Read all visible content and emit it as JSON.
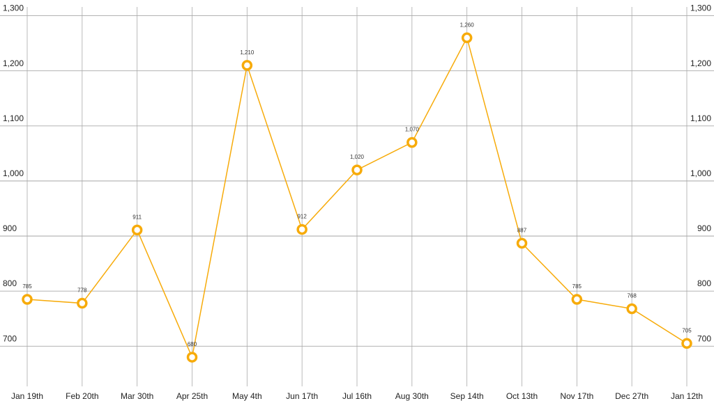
{
  "chart_data": {
    "type": "line",
    "categories": [
      "Jan 19th",
      "Feb 20th",
      "Mar 30th",
      "Apr 25th",
      "May 4th",
      "Jun 17th",
      "Jul 16th",
      "Aug 30th",
      "Sep 14th",
      "Oct 13th",
      "Nov 17th",
      "Dec 27th",
      "Jan 12th"
    ],
    "values": [
      785,
      778,
      911,
      680,
      1210,
      912,
      1020,
      1070,
      1260,
      887,
      785,
      768,
      705
    ],
    "value_labels": [
      "785",
      "778",
      "911",
      "680",
      "1,210",
      "912",
      "1,020",
      "1,070",
      "1,260",
      "887",
      "785",
      "768",
      "705"
    ],
    "color": "#f7ab0a",
    "ylim": [
      627,
      1316
    ],
    "yticks": [
      700,
      800,
      900,
      {
        "value": 1000,
        "label": "1,000"
      },
      {
        "value": 1100,
        "label": "1,100"
      },
      {
        "value": 1200,
        "label": "1,200"
      },
      {
        "value": 1300,
        "label": "1,300"
      }
    ],
    "grid": true
  }
}
